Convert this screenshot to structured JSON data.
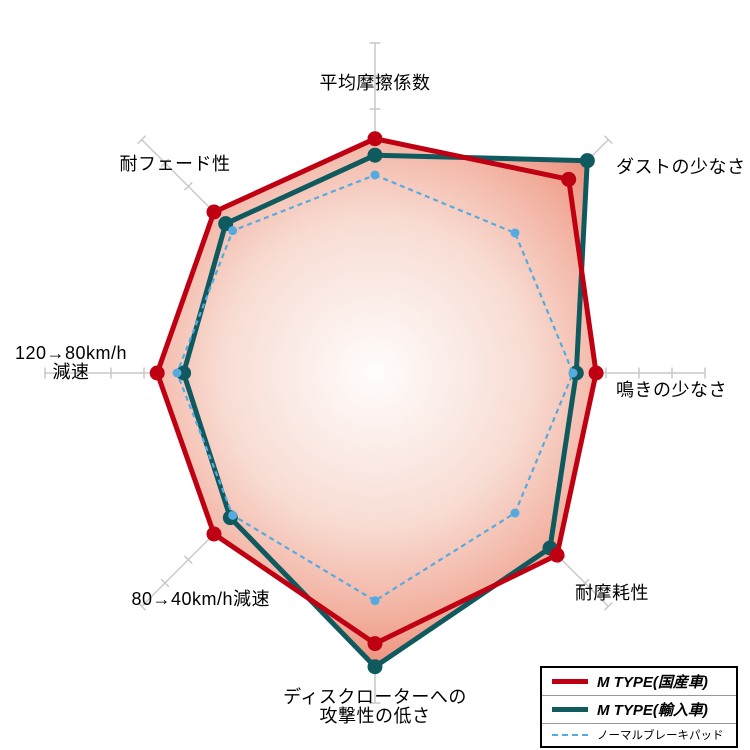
{
  "page": {
    "background": "#ffffff"
  },
  "chart_data": {
    "type": "radar",
    "categories": [
      "平均摩擦係数",
      "ダストの少なさ",
      "鳴きの少なさ",
      "耐摩耗性",
      "ディスクローターへの\n攻撃性の低さ",
      "80→40km/h減速",
      "120→80km/h\n減速",
      "耐フェード性"
    ],
    "max": 10,
    "tick_interval": 1,
    "center": [
      375,
      373
    ],
    "radius": 330,
    "axis_color": "#c9c9c9",
    "grid": "ticks-only",
    "legend_position": "bottom-right",
    "fill_gradient": [
      "#fffdfc",
      "#f8dcd3",
      "#f2af9e",
      "#ec8b77"
    ],
    "series": [
      {
        "name": "M TYPE(国産車)",
        "color": "#bf0012",
        "style": "solid",
        "width": 5,
        "dot": 7.5,
        "fill": true,
        "z": 2,
        "values": [
          7.1,
          8.3,
          6.7,
          7.8,
          8.2,
          6.9,
          6.6,
          6.9
        ]
      },
      {
        "name": "M TYPE(輸入車)",
        "color": "#0f5a5f",
        "style": "solid",
        "width": 5,
        "dot": 7.5,
        "fill": true,
        "z": 1,
        "values": [
          6.6,
          9.1,
          6.1,
          7.5,
          8.9,
          6.2,
          5.8,
          6.4
        ]
      },
      {
        "name": "ノーマルブレーキパッド",
        "color": "#55abdf",
        "style": "dashed",
        "width": 2.2,
        "dot": 4.5,
        "fill": false,
        "z": 3,
        "values": [
          6.0,
          6.0,
          6.0,
          6.0,
          6.9,
          6.1,
          6.0,
          6.1
        ]
      }
    ]
  }
}
